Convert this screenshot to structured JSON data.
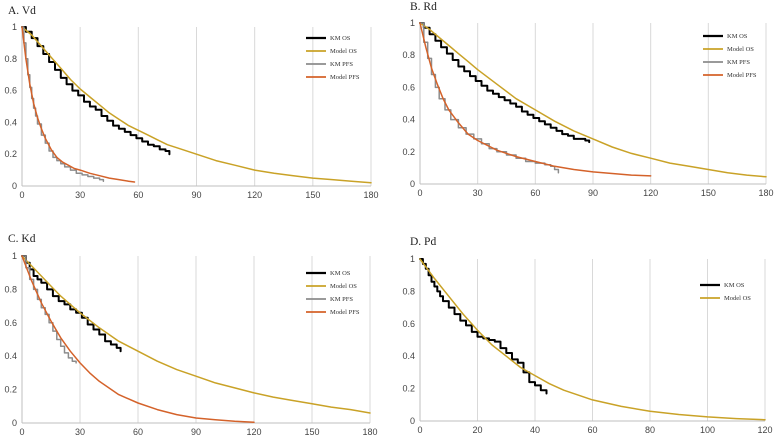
{
  "chart_data": [
    {
      "id": "A",
      "type": "line",
      "title": "A. Vd",
      "xlabel": "",
      "ylabel": "",
      "xlim": [
        0,
        180
      ],
      "ylim": [
        0,
        1
      ],
      "xticks": [
        0,
        30,
        60,
        90,
        120,
        150,
        180
      ],
      "yticks": [
        0,
        0.2,
        0.4,
        0.6,
        0.8,
        1
      ],
      "grid": "vertical",
      "legend_position": "top-right",
      "series": [
        {
          "name": "KM OS",
          "color": "#000000",
          "width": 2,
          "step": true,
          "x": [
            0,
            2,
            5,
            8,
            11,
            14,
            17,
            20,
            23,
            26,
            29,
            32,
            35,
            38,
            41,
            44,
            47,
            50,
            53,
            56,
            59,
            62,
            65,
            68,
            71,
            74,
            76
          ],
          "y": [
            1,
            0.97,
            0.93,
            0.88,
            0.83,
            0.78,
            0.73,
            0.68,
            0.64,
            0.6,
            0.57,
            0.53,
            0.5,
            0.48,
            0.44,
            0.41,
            0.38,
            0.36,
            0.34,
            0.32,
            0.3,
            0.28,
            0.26,
            0.25,
            0.23,
            0.22,
            0.2
          ]
        },
        {
          "name": "Model OS",
          "color": "#C9A227",
          "width": 1.5,
          "x": [
            0,
            5,
            10,
            15,
            20,
            25,
            30,
            35,
            40,
            45,
            50,
            55,
            60,
            65,
            70,
            75,
            80,
            90,
            100,
            110,
            120,
            130,
            140,
            150,
            160,
            170,
            180
          ],
          "y": [
            1,
            0.95,
            0.88,
            0.81,
            0.74,
            0.67,
            0.61,
            0.56,
            0.51,
            0.46,
            0.42,
            0.38,
            0.35,
            0.32,
            0.29,
            0.26,
            0.24,
            0.2,
            0.16,
            0.13,
            0.1,
            0.08,
            0.065,
            0.05,
            0.04,
            0.03,
            0.02
          ]
        },
        {
          "name": "KM PFS",
          "color": "#8C8C8C",
          "width": 1.5,
          "step": true,
          "x": [
            0,
            1,
            2,
            3,
            4,
            5,
            6,
            7,
            8,
            10,
            12,
            14,
            16,
            18,
            20,
            22,
            25,
            28,
            31,
            34,
            37,
            40,
            42
          ],
          "y": [
            1,
            0.9,
            0.8,
            0.7,
            0.62,
            0.55,
            0.49,
            0.44,
            0.39,
            0.32,
            0.27,
            0.22,
            0.18,
            0.16,
            0.14,
            0.12,
            0.1,
            0.08,
            0.07,
            0.06,
            0.05,
            0.04,
            0.03
          ]
        },
        {
          "name": "Model PFS",
          "color": "#D4622A",
          "width": 1.5,
          "x": [
            0,
            2,
            4,
            6,
            8,
            10,
            12,
            15,
            18,
            21,
            24,
            27,
            30,
            35,
            40,
            45,
            50,
            55,
            58
          ],
          "y": [
            1,
            0.8,
            0.64,
            0.52,
            0.43,
            0.36,
            0.3,
            0.23,
            0.18,
            0.15,
            0.13,
            0.11,
            0.1,
            0.08,
            0.065,
            0.05,
            0.04,
            0.03,
            0.025
          ]
        }
      ]
    },
    {
      "id": "B",
      "type": "line",
      "title": "B. Rd",
      "xlabel": "",
      "ylabel": "",
      "xlim": [
        0,
        180
      ],
      "ylim": [
        0,
        1
      ],
      "xticks": [
        0,
        30,
        60,
        90,
        120,
        150,
        180
      ],
      "yticks": [
        0,
        0.2,
        0.4,
        0.6,
        0.8,
        1
      ],
      "grid": "vertical",
      "legend_position": "top-right",
      "series": [
        {
          "name": "KM OS",
          "color": "#000000",
          "width": 2,
          "step": true,
          "x": [
            0,
            2,
            5,
            8,
            11,
            14,
            17,
            20,
            23,
            26,
            29,
            32,
            35,
            38,
            41,
            44,
            47,
            50,
            53,
            56,
            59,
            62,
            65,
            68,
            71,
            74,
            77,
            80,
            83,
            86,
            88
          ],
          "y": [
            1,
            0.97,
            0.93,
            0.89,
            0.85,
            0.81,
            0.77,
            0.73,
            0.7,
            0.67,
            0.64,
            0.61,
            0.58,
            0.56,
            0.54,
            0.52,
            0.5,
            0.48,
            0.45,
            0.43,
            0.41,
            0.39,
            0.37,
            0.35,
            0.33,
            0.31,
            0.3,
            0.28,
            0.28,
            0.27,
            0.26
          ]
        },
        {
          "name": "Model OS",
          "color": "#C9A227",
          "width": 1.5,
          "x": [
            0,
            5,
            10,
            15,
            20,
            25,
            30,
            40,
            50,
            60,
            70,
            80,
            90,
            100,
            110,
            120,
            130,
            140,
            150,
            160,
            170,
            180
          ],
          "y": [
            1,
            0.96,
            0.91,
            0.86,
            0.81,
            0.76,
            0.71,
            0.62,
            0.53,
            0.46,
            0.39,
            0.33,
            0.28,
            0.23,
            0.19,
            0.16,
            0.13,
            0.11,
            0.09,
            0.07,
            0.055,
            0.045
          ]
        },
        {
          "name": "KM PFS",
          "color": "#8C8C8C",
          "width": 1.5,
          "step": true,
          "x": [
            0,
            2,
            4,
            6,
            8,
            10,
            13,
            16,
            20,
            24,
            28,
            32,
            36,
            40,
            45,
            50,
            55,
            60,
            65,
            68,
            70,
            72
          ],
          "y": [
            1,
            0.88,
            0.78,
            0.68,
            0.6,
            0.53,
            0.46,
            0.4,
            0.35,
            0.31,
            0.28,
            0.25,
            0.22,
            0.2,
            0.18,
            0.16,
            0.14,
            0.13,
            0.12,
            0.11,
            0.09,
            0.07
          ]
        },
        {
          "name": "Model PFS",
          "color": "#D4622A",
          "width": 1.5,
          "x": [
            0,
            3,
            6,
            9,
            12,
            15,
            20,
            25,
            30,
            40,
            50,
            60,
            70,
            80,
            90,
            100,
            110,
            120
          ],
          "y": [
            1,
            0.85,
            0.72,
            0.62,
            0.53,
            0.46,
            0.38,
            0.31,
            0.27,
            0.21,
            0.17,
            0.14,
            0.11,
            0.09,
            0.075,
            0.065,
            0.055,
            0.05
          ]
        }
      ]
    },
    {
      "id": "C",
      "type": "line",
      "title": "C. Kd",
      "xlabel": "",
      "ylabel": "",
      "xlim": [
        0,
        180
      ],
      "ylim": [
        0,
        1
      ],
      "xticks": [
        0,
        30,
        60,
        90,
        120,
        150,
        180
      ],
      "yticks": [
        0,
        0.2,
        0.4,
        0.6,
        0.8,
        1
      ],
      "grid": "vertical",
      "legend_position": "top-right",
      "series": [
        {
          "name": "KM OS",
          "color": "#000000",
          "width": 2,
          "step": true,
          "x": [
            0,
            2,
            4,
            6,
            8,
            10,
            13,
            16,
            19,
            22,
            25,
            28,
            31,
            34,
            37,
            40,
            43,
            46,
            49,
            51
          ],
          "y": [
            1,
            0.96,
            0.92,
            0.88,
            0.86,
            0.84,
            0.8,
            0.76,
            0.73,
            0.71,
            0.68,
            0.66,
            0.63,
            0.59,
            0.56,
            0.53,
            0.49,
            0.47,
            0.45,
            0.43
          ]
        },
        {
          "name": "Model OS",
          "color": "#C9A227",
          "width": 1.5,
          "x": [
            0,
            5,
            10,
            15,
            20,
            25,
            30,
            40,
            50,
            60,
            70,
            80,
            90,
            100,
            110,
            120,
            130,
            140,
            150,
            160,
            170,
            180
          ],
          "y": [
            1,
            0.94,
            0.88,
            0.82,
            0.76,
            0.71,
            0.66,
            0.57,
            0.49,
            0.43,
            0.37,
            0.32,
            0.28,
            0.24,
            0.21,
            0.18,
            0.155,
            0.135,
            0.115,
            0.095,
            0.08,
            0.06
          ]
        },
        {
          "name": "KM PFS",
          "color": "#8C8C8C",
          "width": 1.5,
          "step": true,
          "x": [
            0,
            2,
            4,
            6,
            8,
            10,
            12,
            14,
            16,
            18,
            20,
            22,
            24,
            26,
            28
          ],
          "y": [
            1,
            0.93,
            0.86,
            0.8,
            0.74,
            0.69,
            0.65,
            0.6,
            0.55,
            0.5,
            0.46,
            0.42,
            0.39,
            0.37,
            0.36
          ]
        },
        {
          "name": "Model PFS",
          "color": "#D4622A",
          "width": 1.5,
          "x": [
            0,
            5,
            10,
            15,
            20,
            25,
            30,
            35,
            40,
            50,
            60,
            70,
            80,
            90,
            100,
            110,
            120
          ],
          "y": [
            1,
            0.85,
            0.72,
            0.61,
            0.51,
            0.43,
            0.36,
            0.3,
            0.25,
            0.17,
            0.12,
            0.08,
            0.05,
            0.03,
            0.02,
            0.01,
            0.005
          ]
        }
      ]
    },
    {
      "id": "D",
      "type": "line",
      "title": "D. Pd",
      "xlabel": "",
      "ylabel": "",
      "xlim": [
        0,
        120
      ],
      "ylim": [
        0,
        1
      ],
      "xticks": [
        0,
        20,
        40,
        60,
        80,
        100,
        120
      ],
      "yticks": [
        0,
        0.2,
        0.4,
        0.6,
        0.8,
        1
      ],
      "grid": "vertical",
      "legend_position": "top-right",
      "series": [
        {
          "name": "KM OS",
          "color": "#000000",
          "width": 2,
          "step": true,
          "x": [
            0,
            1,
            2,
            3,
            4,
            5,
            6,
            7,
            8,
            10,
            12,
            14,
            16,
            18,
            20,
            22,
            24,
            26,
            28,
            30,
            32,
            34,
            36,
            38,
            40,
            42,
            44
          ],
          "y": [
            1,
            0.97,
            0.94,
            0.9,
            0.86,
            0.83,
            0.8,
            0.77,
            0.74,
            0.7,
            0.66,
            0.62,
            0.59,
            0.55,
            0.52,
            0.51,
            0.5,
            0.49,
            0.45,
            0.42,
            0.38,
            0.36,
            0.3,
            0.24,
            0.22,
            0.19,
            0.17
          ]
        },
        {
          "name": "Model OS",
          "color": "#C9A227",
          "width": 1.5,
          "x": [
            0,
            5,
            10,
            15,
            20,
            25,
            30,
            35,
            40,
            45,
            50,
            60,
            70,
            80,
            90,
            100,
            110,
            120
          ],
          "y": [
            1,
            0.88,
            0.77,
            0.66,
            0.56,
            0.47,
            0.4,
            0.33,
            0.28,
            0.23,
            0.19,
            0.13,
            0.09,
            0.06,
            0.04,
            0.025,
            0.015,
            0.008
          ]
        }
      ]
    }
  ]
}
